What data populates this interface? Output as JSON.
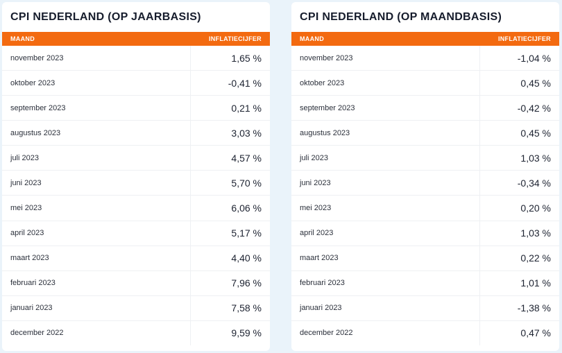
{
  "left": {
    "title": "CPI NEDERLAND (OP JAARBASIS)",
    "col_month": "MAAND",
    "col_value": "INFLATIECIJFER",
    "rows": [
      {
        "month": "november 2023",
        "value": "1,65 %"
      },
      {
        "month": "oktober 2023",
        "value": "-0,41 %"
      },
      {
        "month": "september 2023",
        "value": "0,21 %"
      },
      {
        "month": "augustus 2023",
        "value": "3,03 %"
      },
      {
        "month": "juli 2023",
        "value": "4,57 %"
      },
      {
        "month": "juni 2023",
        "value": "5,70 %"
      },
      {
        "month": "mei 2023",
        "value": "6,06 %"
      },
      {
        "month": "april 2023",
        "value": "5,17 %"
      },
      {
        "month": "maart 2023",
        "value": "4,40 %"
      },
      {
        "month": "februari 2023",
        "value": "7,96 %"
      },
      {
        "month": "januari 2023",
        "value": "7,58 %"
      },
      {
        "month": "december 2022",
        "value": "9,59 %"
      }
    ]
  },
  "right": {
    "title": "CPI NEDERLAND (OP MAANDBASIS)",
    "col_month": "MAAND",
    "col_value": "INFLATIECIJFER",
    "rows": [
      {
        "month": "november 2023",
        "value": "-1,04 %"
      },
      {
        "month": "oktober 2023",
        "value": "0,45 %"
      },
      {
        "month": "september 2023",
        "value": "-0,42 %"
      },
      {
        "month": "augustus 2023",
        "value": "0,45 %"
      },
      {
        "month": "juli 2023",
        "value": "1,03 %"
      },
      {
        "month": "juni 2023",
        "value": "-0,34 %"
      },
      {
        "month": "mei 2023",
        "value": "0,20 %"
      },
      {
        "month": "april 2023",
        "value": "1,03 %"
      },
      {
        "month": "maart 2023",
        "value": "0,22 %"
      },
      {
        "month": "februari 2023",
        "value": "1,01 %"
      },
      {
        "month": "januari 2023",
        "value": "-1,38 %"
      },
      {
        "month": "december 2022",
        "value": "0,47 %"
      }
    ]
  },
  "colors": {
    "header_bg": "#f36a10",
    "header_text": "#ffffff",
    "page_bg": "#eaf3fa"
  }
}
